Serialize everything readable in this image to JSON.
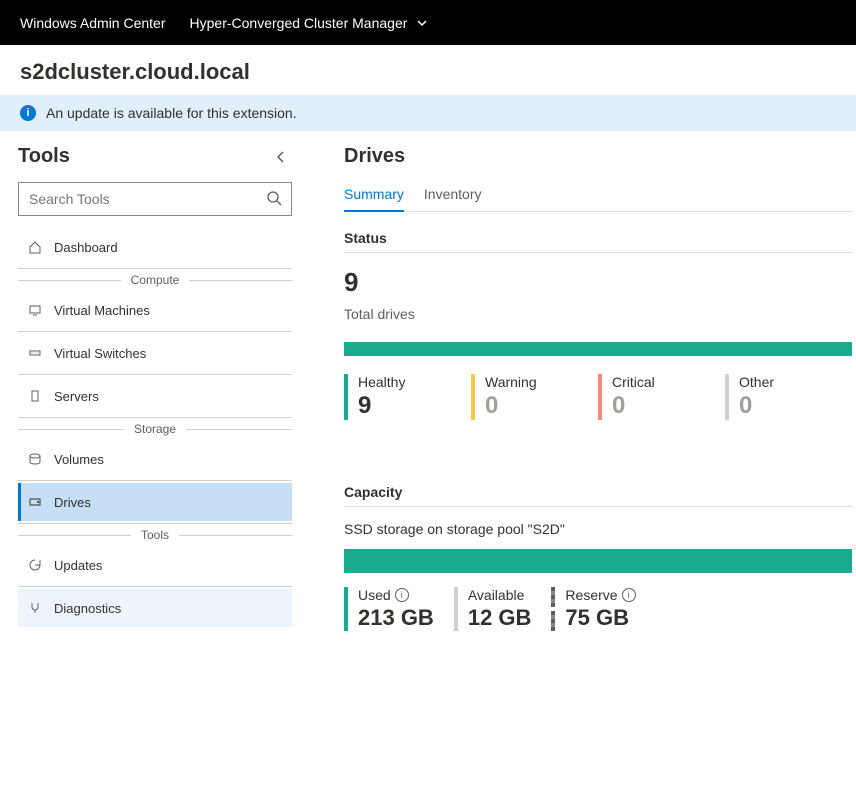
{
  "topbar": {
    "brand": "Windows Admin Center",
    "context": "Hyper-Converged Cluster Manager"
  },
  "cluster_name": "s2dcluster.cloud.local",
  "update_banner": "An update is available for this extension.",
  "sidebar": {
    "title": "Tools",
    "search_placeholder": "Search Tools",
    "items": [
      {
        "label": "Dashboard"
      }
    ],
    "compute_label": "Compute",
    "compute_items": [
      {
        "label": "Virtual Machines"
      },
      {
        "label": "Virtual Switches"
      },
      {
        "label": "Servers"
      }
    ],
    "storage_label": "Storage",
    "storage_items": [
      {
        "label": "Volumes"
      },
      {
        "label": "Drives"
      }
    ],
    "tools_label": "Tools",
    "tools_items": [
      {
        "label": "Updates"
      },
      {
        "label": "Diagnostics"
      }
    ]
  },
  "main": {
    "title": "Drives",
    "tabs": {
      "summary": "Summary",
      "inventory": "Inventory"
    },
    "status": {
      "heading": "Status",
      "total_value": "9",
      "total_label": "Total drives",
      "bar_color": "#1aab8f",
      "cells": [
        {
          "label": "Healthy",
          "value": "9",
          "color": "#1aab8f",
          "zero": false
        },
        {
          "label": "Warning",
          "value": "0",
          "color": "#f2c94c",
          "zero": true
        },
        {
          "label": "Critical",
          "value": "0",
          "color": "#f28b82",
          "zero": true
        },
        {
          "label": "Other",
          "value": "0",
          "color": "#d2d0ce",
          "zero": true
        }
      ]
    },
    "capacity": {
      "heading": "Capacity",
      "description": "SSD storage on storage pool \"S2D\"",
      "bar_color": "#1aab8f",
      "used_label": "Used",
      "used_value": "213 GB",
      "available_label": "Available",
      "available_value": "12 GB",
      "reserve_label": "Reserve",
      "reserve_value": "75 GB"
    }
  }
}
